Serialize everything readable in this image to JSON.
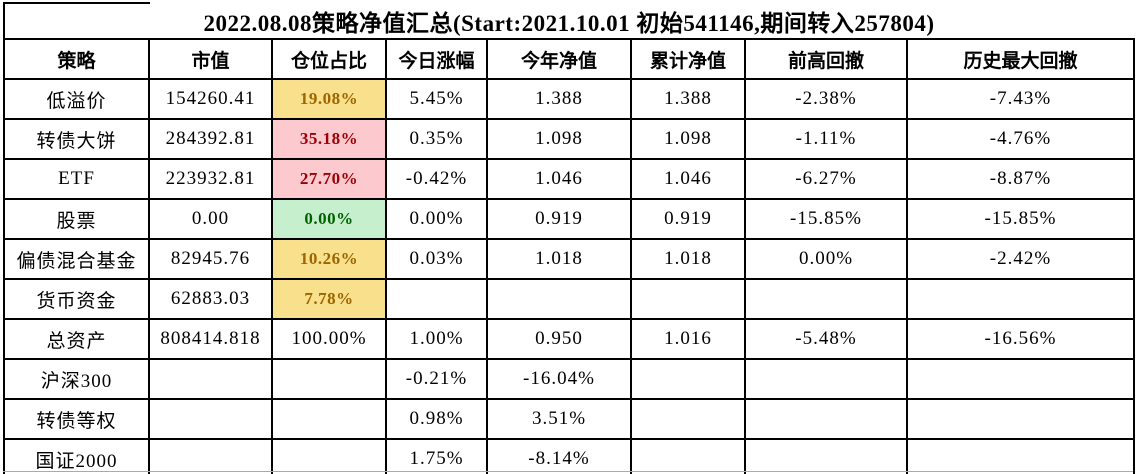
{
  "title": "2022.08.08策略净值汇总(Start:2021.10.01 初始541146,期间转入257804)",
  "columns": [
    "策略",
    "市值",
    "仓位占比",
    "今日涨幅",
    "今年净值",
    "累计净值",
    "前高回撤",
    "历史最大回撤"
  ],
  "rows": [
    {
      "strategy": "低溢价",
      "market_value": "154260.41",
      "position_pct": "19.08%",
      "position_style": "warning",
      "today_change": "5.45%",
      "ytd_nav": "1.388",
      "cum_nav": "1.388",
      "drawdown_from_high": "-2.38%",
      "max_drawdown": "-7.43%"
    },
    {
      "strategy": "转债大饼",
      "market_value": "284392.81",
      "position_pct": "35.18%",
      "position_style": "danger",
      "today_change": "0.35%",
      "ytd_nav": "1.098",
      "cum_nav": "1.098",
      "drawdown_from_high": "-1.11%",
      "max_drawdown": "-4.76%"
    },
    {
      "strategy": "ETF",
      "market_value": "223932.81",
      "position_pct": "27.70%",
      "position_style": "danger",
      "today_change": "-0.42%",
      "ytd_nav": "1.046",
      "cum_nav": "1.046",
      "drawdown_from_high": "-6.27%",
      "max_drawdown": "-8.87%"
    },
    {
      "strategy": "股票",
      "market_value": "0.00",
      "position_pct": "0.00%",
      "position_style": "good",
      "today_change": "0.00%",
      "ytd_nav": "0.919",
      "cum_nav": "0.919",
      "drawdown_from_high": "-15.85%",
      "max_drawdown": "-15.85%"
    },
    {
      "strategy": "偏债混合基金",
      "market_value": "82945.76",
      "position_pct": "10.26%",
      "position_style": "warning",
      "today_change": "0.03%",
      "ytd_nav": "1.018",
      "cum_nav": "1.018",
      "drawdown_from_high": "0.00%",
      "max_drawdown": "-2.42%"
    },
    {
      "strategy": "货币资金",
      "market_value": "62883.03",
      "position_pct": "7.78%",
      "position_style": "warning",
      "today_change": "",
      "ytd_nav": "",
      "cum_nav": "",
      "drawdown_from_high": "",
      "max_drawdown": ""
    },
    {
      "strategy": "总资产",
      "market_value": "808414.818",
      "position_pct": "100.00%",
      "position_style": "plain",
      "today_change": "1.00%",
      "ytd_nav": "0.950",
      "cum_nav": "1.016",
      "drawdown_from_high": "-5.48%",
      "max_drawdown": "-16.56%"
    },
    {
      "strategy": "沪深300",
      "market_value": "",
      "position_pct": "",
      "position_style": "plain",
      "today_change": "-0.21%",
      "ytd_nav": "-16.04%",
      "cum_nav": "",
      "drawdown_from_high": "",
      "max_drawdown": ""
    },
    {
      "strategy": "转债等权",
      "market_value": "",
      "position_pct": "",
      "position_style": "plain",
      "today_change": "0.98%",
      "ytd_nav": "3.51%",
      "cum_nav": "",
      "drawdown_from_high": "",
      "max_drawdown": ""
    },
    {
      "strategy": "国证2000",
      "market_value": "",
      "position_pct": "",
      "position_style": "plain",
      "today_change": "1.75%",
      "ytd_nav": "-8.14%",
      "cum_nav": "",
      "drawdown_from_high": "",
      "max_drawdown": ""
    }
  ],
  "styles": {
    "warning": {
      "bg": "#F8E08C",
      "fg": "#9C6500"
    },
    "danger": {
      "bg": "#FBC9CE",
      "fg": "#9C0006"
    },
    "good": {
      "bg": "#C6EFCE",
      "fg": "#006100"
    }
  },
  "grid_color": "#000000"
}
